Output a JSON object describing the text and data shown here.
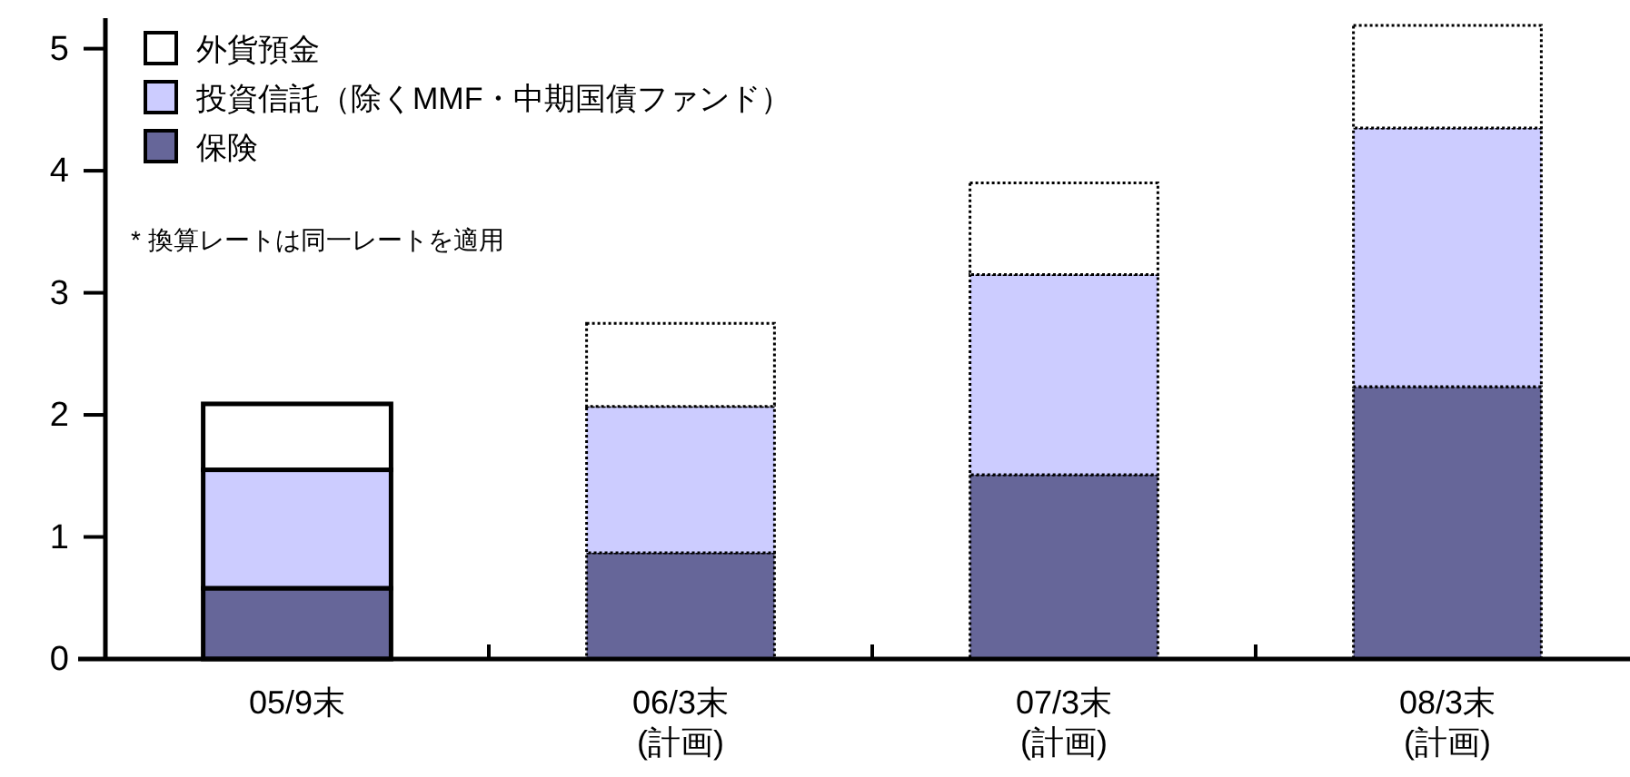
{
  "chart_data": {
    "type": "bar",
    "stacked": true,
    "categories": [
      "05/9末",
      "06/3末\n(計画)",
      "07/3末\n(計画)",
      "08/3末\n(計画)"
    ],
    "series": [
      {
        "name": "保険",
        "color": "#666699",
        "values": [
          0.58,
          0.87,
          1.51,
          2.23
        ]
      },
      {
        "name": "投資信託（除くMMF・中期国債ファンド）",
        "color": "#ccccff",
        "values": [
          0.97,
          1.2,
          1.64,
          2.12
        ]
      },
      {
        "name": "外貨預金",
        "color": "#ffffff",
        "values": [
          0.54,
          0.68,
          0.75,
          0.84
        ]
      }
    ],
    "ylim": [
      0,
      5.25
    ],
    "yticks": [
      0,
      1,
      2,
      3,
      4,
      5
    ],
    "grid": false,
    "legend": "top left",
    "annotations": [
      "* 換算レートは同一レートを適用"
    ]
  }
}
